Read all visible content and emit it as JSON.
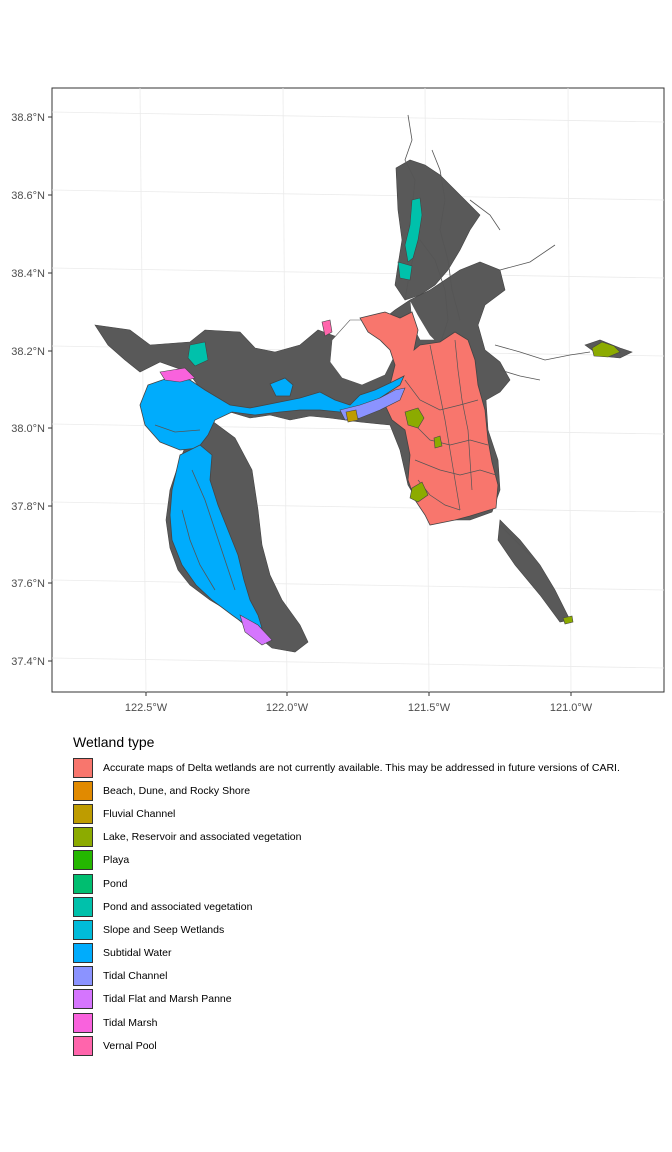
{
  "map": {
    "lat_ticks": [
      "38.8°N",
      "38.6°N",
      "38.4°N",
      "38.2°N",
      "38.0°N",
      "37.8°N",
      "37.6°N",
      "37.4°N"
    ],
    "lon_ticks": [
      "122.5°W",
      "122.0°W",
      "121.5°W",
      "121.0°W"
    ],
    "base_color": "#595959"
  },
  "legend": {
    "title": "Wetland type",
    "items": [
      {
        "label": "Accurate maps of Delta wetlands are not currently available. This may be addressed in future versions of CARI.",
        "color": "#F8766D"
      },
      {
        "label": "Beach, Dune, and Rocky Shore",
        "color": "#E18A00"
      },
      {
        "label": "Fluvial Channel",
        "color": "#BE9C00"
      },
      {
        "label": "Lake, Reservoir and associated vegetation",
        "color": "#8CAB00"
      },
      {
        "label": "Playa",
        "color": "#24B700"
      },
      {
        "label": "Pond",
        "color": "#00BE70"
      },
      {
        "label": "Pond and associated vegetation",
        "color": "#00C1AB"
      },
      {
        "label": "Slope and Seep Wetlands",
        "color": "#00BBDA"
      },
      {
        "label": "Subtidal Water",
        "color": "#00ACFC"
      },
      {
        "label": "Tidal Channel",
        "color": "#8B93FF"
      },
      {
        "label": "Tidal Flat and Marsh Panne",
        "color": "#D575FE"
      },
      {
        "label": "Tidal Marsh",
        "color": "#F962DD"
      },
      {
        "label": "Vernal Pool",
        "color": "#FF65AC"
      }
    ]
  }
}
